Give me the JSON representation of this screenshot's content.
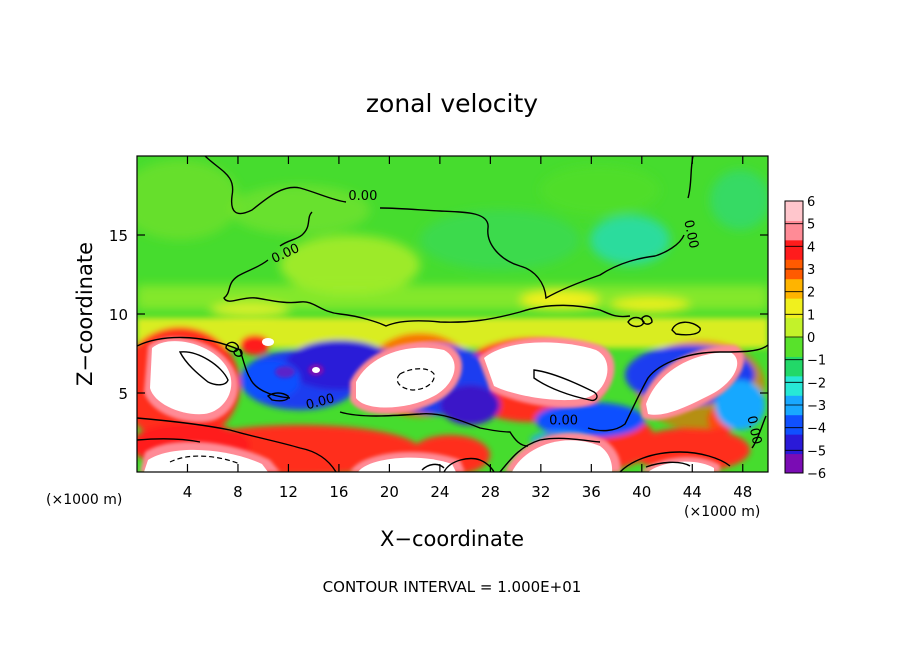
{
  "chart_data": {
    "type": "heatmap",
    "title": "zonal velocity",
    "xlabel": "X−coordinate",
    "ylabel": "Z−coordinate",
    "x_unit_left": "(×1000 m)",
    "x_unit_right": "(×1000 m)",
    "xlim": [
      0,
      50
    ],
    "ylim": [
      0,
      20
    ],
    "x_ticks": [
      4,
      8,
      12,
      16,
      20,
      24,
      28,
      32,
      36,
      40,
      44,
      48
    ],
    "x_tick_labels": [
      "4",
      "8",
      "12",
      "16",
      "20",
      "24",
      "28",
      "32",
      "36",
      "40",
      "44",
      "48"
    ],
    "y_ticks": [
      5,
      10,
      15
    ],
    "y_tick_labels": [
      "5",
      "10",
      "15"
    ],
    "colorbar": {
      "min": -6,
      "max": 6,
      "ticks": [
        6,
        5,
        4,
        3,
        2,
        1,
        0,
        -1,
        -2,
        -3,
        -4,
        -5,
        -6
      ],
      "tick_labels": [
        "6",
        "5",
        "4",
        "3",
        "2",
        "1",
        "0",
        "−1",
        "−2",
        "−3",
        "−4",
        "−5",
        "−6"
      ],
      "colors": [
        "#7a0cb4",
        "#2a1ad8",
        "#1050ff",
        "#19a8ff",
        "#27e8d6",
        "#22d868",
        "#58e22b",
        "#c3f22a",
        "#f0f01e",
        "#ffb400",
        "#ff5a00",
        "#ff1c1c",
        "#ff8b96",
        "#ffc6cc"
      ]
    },
    "contour_labels": [
      {
        "text": "0.00",
        "x": 17.9,
        "z": 17.2
      },
      {
        "text": "0.00",
        "x": 11.9,
        "z": 13.6
      },
      {
        "text": "0.00",
        "x": 43.6,
        "z": 15.0
      },
      {
        "text": "0.00",
        "x": 14.6,
        "z": 4.2
      },
      {
        "text": "0.00",
        "x": 33.8,
        "z": 3.0
      },
      {
        "text": "0.00",
        "x": 48.6,
        "z": 2.6
      }
    ],
    "footer": "CONTOUR INTERVAL =  1.000E+01"
  }
}
